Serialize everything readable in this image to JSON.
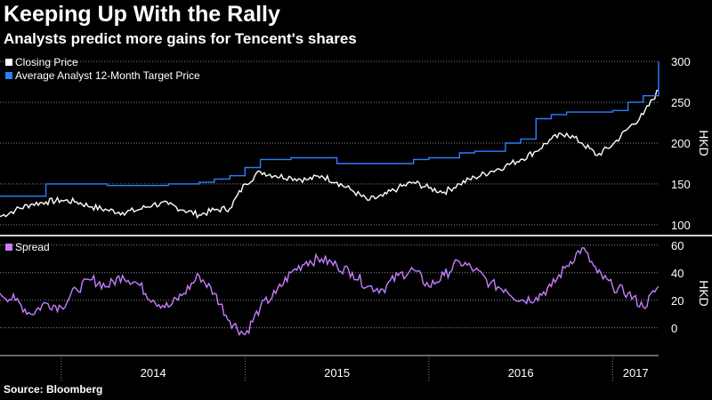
{
  "header": {
    "title": "Keeping Up With the Rally",
    "subtitle": "Analysts predict more gains for Tencent's shares"
  },
  "footer": {
    "source": "Source: Bloomberg"
  },
  "colors": {
    "closing": "#ffffff",
    "target": "#2a7fff",
    "spread": "#c77dff",
    "grid": "#8a8a8a",
    "background": "#000000"
  },
  "chart_data": [
    {
      "type": "line",
      "ylabel": "HKD",
      "ylim": [
        90,
        310
      ],
      "yticks": [
        100,
        150,
        200,
        250,
        300
      ],
      "x_domain": [
        "2013-09",
        "2017-04"
      ],
      "legend_position": "top-left",
      "grid": true,
      "series": [
        {
          "name": "Closing Price",
          "color": "#ffffff",
          "points": [
            [
              "2013-09",
              110
            ],
            [
              "2013-10",
              118
            ],
            [
              "2013-11",
              125
            ],
            [
              "2013-12",
              128
            ],
            [
              "2014-01",
              130
            ],
            [
              "2014-02",
              128
            ],
            [
              "2014-03",
              122
            ],
            [
              "2014-04",
              118
            ],
            [
              "2014-05",
              115
            ],
            [
              "2014-06",
              118
            ],
            [
              "2014-07",
              125
            ],
            [
              "2014-08",
              125
            ],
            [
              "2014-09",
              118
            ],
            [
              "2014-10",
              112
            ],
            [
              "2014-11",
              118
            ],
            [
              "2014-12",
              120
            ],
            [
              "2015-01",
              150
            ],
            [
              "2015-02",
              165
            ],
            [
              "2015-03",
              160
            ],
            [
              "2015-04",
              158
            ],
            [
              "2015-05",
              155
            ],
            [
              "2015-06",
              160
            ],
            [
              "2015-07",
              152
            ],
            [
              "2015-08",
              142
            ],
            [
              "2015-09",
              130
            ],
            [
              "2015-10",
              135
            ],
            [
              "2015-11",
              145
            ],
            [
              "2015-12",
              152
            ],
            [
              "2016-01",
              145
            ],
            [
              "2016-02",
              140
            ],
            [
              "2016-03",
              150
            ],
            [
              "2016-04",
              158
            ],
            [
              "2016-05",
              165
            ],
            [
              "2016-06",
              172
            ],
            [
              "2016-07",
              180
            ],
            [
              "2016-08",
              190
            ],
            [
              "2016-09",
              205
            ],
            [
              "2016-10",
              212
            ],
            [
              "2016-11",
              200
            ],
            [
              "2016-12",
              185
            ],
            [
              "2017-01",
              198
            ],
            [
              "2017-02",
              218
            ],
            [
              "2017-03",
              235
            ],
            [
              "2017-04",
              265
            ]
          ]
        },
        {
          "name": "Average Analyst 12-Month Target Price",
          "color": "#2a7fff",
          "points": [
            [
              "2013-09",
              135
            ],
            [
              "2013-11",
              135
            ],
            [
              "2013-12",
              150
            ],
            [
              "2014-02",
              150
            ],
            [
              "2014-04",
              148
            ],
            [
              "2014-06",
              148
            ],
            [
              "2014-08",
              150
            ],
            [
              "2014-10",
              152
            ],
            [
              "2014-11",
              156
            ],
            [
              "2014-12",
              160
            ],
            [
              "2015-01",
              170
            ],
            [
              "2015-02",
              180
            ],
            [
              "2015-04",
              182
            ],
            [
              "2015-06",
              182
            ],
            [
              "2015-07",
              175
            ],
            [
              "2015-10",
              175
            ],
            [
              "2015-12",
              180
            ],
            [
              "2016-01",
              182
            ],
            [
              "2016-03",
              188
            ],
            [
              "2016-04",
              190
            ],
            [
              "2016-06",
              200
            ],
            [
              "2016-07",
              205
            ],
            [
              "2016-08",
              230
            ],
            [
              "2016-09",
              235
            ],
            [
              "2016-10",
              238
            ],
            [
              "2016-12",
              238
            ],
            [
              "2017-01",
              240
            ],
            [
              "2017-02",
              250
            ],
            [
              "2017-03",
              258
            ],
            [
              "2017-04",
              300
            ]
          ]
        }
      ]
    },
    {
      "type": "line",
      "ylabel": "HKD",
      "ylim": [
        -15,
        65
      ],
      "yticks": [
        0,
        20,
        40,
        60
      ],
      "x_domain": [
        "2013-09",
        "2017-04"
      ],
      "x_ticks": [
        "2014",
        "2015",
        "2016",
        "2017"
      ],
      "legend_position": "top-left",
      "grid": true,
      "series": [
        {
          "name": "Spread",
          "color": "#c77dff",
          "points": [
            [
              "2013-09",
              25
            ],
            [
              "2013-10",
              20
            ],
            [
              "2013-11",
              10
            ],
            [
              "2013-12",
              18
            ],
            [
              "2014-01",
              15
            ],
            [
              "2014-02",
              28
            ],
            [
              "2014-03",
              35
            ],
            [
              "2014-04",
              30
            ],
            [
              "2014-05",
              38
            ],
            [
              "2014-06",
              32
            ],
            [
              "2014-07",
              20
            ],
            [
              "2014-08",
              15
            ],
            [
              "2014-09",
              25
            ],
            [
              "2014-10",
              38
            ],
            [
              "2014-11",
              25
            ],
            [
              "2014-12",
              5
            ],
            [
              "2015-01",
              -5
            ],
            [
              "2015-02",
              15
            ],
            [
              "2015-03",
              25
            ],
            [
              "2015-04",
              40
            ],
            [
              "2015-05",
              48
            ],
            [
              "2015-06",
              50
            ],
            [
              "2015-07",
              45
            ],
            [
              "2015-08",
              40
            ],
            [
              "2015-09",
              30
            ],
            [
              "2015-10",
              28
            ],
            [
              "2015-11",
              38
            ],
            [
              "2015-12",
              42
            ],
            [
              "2016-01",
              30
            ],
            [
              "2016-02",
              38
            ],
            [
              "2016-03",
              48
            ],
            [
              "2016-04",
              42
            ],
            [
              "2016-05",
              32
            ],
            [
              "2016-06",
              28
            ],
            [
              "2016-07",
              20
            ],
            [
              "2016-08",
              22
            ],
            [
              "2016-09",
              30
            ],
            [
              "2016-10",
              45
            ],
            [
              "2016-11",
              58
            ],
            [
              "2016-12",
              40
            ],
            [
              "2017-01",
              30
            ],
            [
              "2017-02",
              25
            ],
            [
              "2017-03",
              15
            ],
            [
              "2017-04",
              30
            ]
          ]
        }
      ]
    }
  ]
}
